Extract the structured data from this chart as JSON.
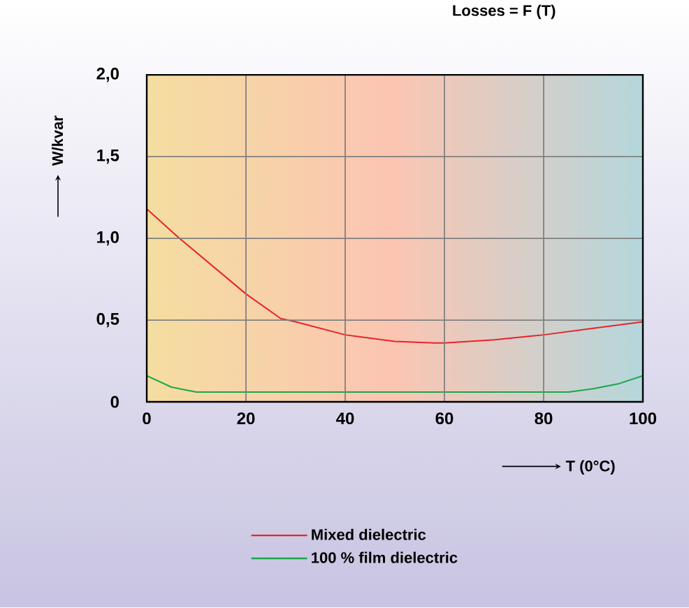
{
  "chart_data": {
    "type": "line",
    "title": "Losses = F (T)",
    "xlabel": "T (0°C)",
    "ylabel": "W/kvar",
    "xlim": [
      0,
      100
    ],
    "ylim": [
      0,
      2
    ],
    "xticks": [
      0,
      20,
      40,
      60,
      80,
      100
    ],
    "yticks": [
      0,
      {
        "value": 0.5,
        "label": "0,5"
      },
      {
        "value": 1,
        "label": "1,0"
      },
      {
        "value": 1.5,
        "label": "1,5"
      },
      {
        "value": 2,
        "label": "2,0"
      }
    ],
    "grid": true,
    "legend": "bottom",
    "line_style": "solid",
    "marker": "none",
    "series": [
      {
        "name": "Mixed dielectric",
        "color": "#e8232a",
        "x": [
          0,
          6.6,
          20,
          27,
          30,
          40,
          50,
          58,
          60,
          70,
          80,
          90,
          100
        ],
        "values": [
          1.18,
          1.0,
          0.66,
          0.51,
          0.49,
          0.41,
          0.37,
          0.36,
          0.36,
          0.38,
          0.41,
          0.45,
          0.49
        ]
      },
      {
        "name": "100 % film dielectric",
        "color": "#1aa64a",
        "x": [
          0,
          5,
          10,
          50,
          85,
          90,
          95,
          100
        ],
        "values": [
          0.16,
          0.09,
          0.06,
          0.06,
          0.06,
          0.08,
          0.11,
          0.16
        ]
      }
    ]
  }
}
